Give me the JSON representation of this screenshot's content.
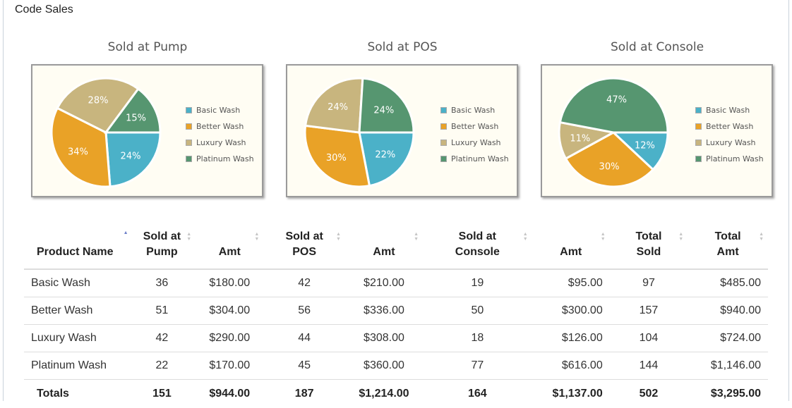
{
  "panel": {
    "title": "Code Sales"
  },
  "legend": [
    "Basic Wash",
    "Better Wash",
    "Luxury Wash",
    "Platinum Wash"
  ],
  "colors": {
    "Basic Wash": "#4bb1c8",
    "Better Wash": "#e9a227",
    "Luxury Wash": "#c8b57e",
    "Platinum Wash": "#569670"
  },
  "chart_data": [
    {
      "type": "pie",
      "title": "Sold at Pump",
      "categories": [
        "Basic Wash",
        "Better Wash",
        "Luxury Wash",
        "Platinum Wash"
      ],
      "values": [
        24,
        34,
        28,
        15
      ],
      "labels": [
        "24%",
        "34%",
        "28%",
        "15%"
      ],
      "legend_position": "right"
    },
    {
      "type": "pie",
      "title": "Sold at POS",
      "categories": [
        "Basic Wash",
        "Better Wash",
        "Luxury Wash",
        "Platinum Wash"
      ],
      "values": [
        22,
        30,
        24,
        24
      ],
      "labels": [
        "22%",
        "30%",
        "24%",
        "24%"
      ],
      "legend_position": "right"
    },
    {
      "type": "pie",
      "title": "Sold at Console",
      "categories": [
        "Basic Wash",
        "Better Wash",
        "Luxury Wash",
        "Platinum Wash"
      ],
      "values": [
        12,
        30,
        11,
        47
      ],
      "labels": [
        "12%",
        "30%",
        "11%",
        "47%"
      ],
      "legend_position": "right"
    }
  ],
  "table": {
    "headers": [
      "Product Name",
      "Sold at Pump",
      "Amt",
      "Sold at POS",
      "Amt",
      "Sold at Console",
      "Amt",
      "Total Sold",
      "Total Amt"
    ],
    "sorted_column": 0,
    "rows": [
      [
        "Basic Wash",
        "36",
        "$180.00",
        "42",
        "$210.00",
        "19",
        "$95.00",
        "97",
        "$485.00"
      ],
      [
        "Better Wash",
        "51",
        "$304.00",
        "56",
        "$336.00",
        "50",
        "$300.00",
        "157",
        "$940.00"
      ],
      [
        "Luxury Wash",
        "42",
        "$290.00",
        "44",
        "$308.00",
        "18",
        "$126.00",
        "104",
        "$724.00"
      ],
      [
        "Platinum Wash",
        "22",
        "$170.00",
        "45",
        "$360.00",
        "77",
        "$616.00",
        "144",
        "$1,146.00"
      ]
    ],
    "totals": [
      "Totals",
      "151",
      "$944.00",
      "187",
      "$1,214.00",
      "164",
      "$1,137.00",
      "502",
      "$3,295.00"
    ]
  }
}
